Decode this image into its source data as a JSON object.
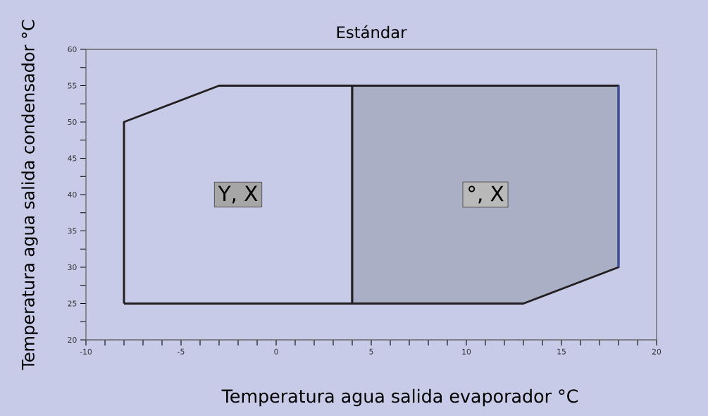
{
  "chart_data": {
    "type": "area",
    "title": "Estándar",
    "xlabel": "Temperatura agua salida evaporador °C",
    "ylabel": "Temperatura agua salida condensador °C",
    "xlim": [
      -10,
      20
    ],
    "ylim": [
      20,
      60
    ],
    "xticks": [
      -10,
      {
        "value": -9,
        "label": null
      },
      {
        "value": -8,
        "label": null
      },
      {
        "value": -7,
        "label": null
      },
      {
        "value": -6,
        "label": null
      },
      -5,
      {
        "value": -4,
        "label": null
      },
      {
        "value": -3,
        "label": null
      },
      {
        "value": -2,
        "label": null
      },
      {
        "value": -1,
        "label": null
      },
      0,
      {
        "value": 1,
        "label": null
      },
      {
        "value": 2,
        "label": null
      },
      {
        "value": 3,
        "label": null
      },
      {
        "value": 4,
        "label": null
      },
      5,
      {
        "value": 6,
        "label": null
      },
      {
        "value": 7,
        "label": null
      },
      {
        "value": 8,
        "label": null
      },
      {
        "value": 9,
        "label": null
      },
      10,
      {
        "value": 11,
        "label": null
      },
      {
        "value": 12,
        "label": null
      },
      {
        "value": 13,
        "label": null
      },
      {
        "value": 14,
        "label": null
      },
      15,
      {
        "value": 16,
        "label": null
      },
      {
        "value": 17,
        "label": null
      },
      {
        "value": 18,
        "label": null
      },
      {
        "value": 19,
        "label": null
      },
      20
    ],
    "yticks": [
      20,
      {
        "value": 22.5,
        "label": null
      },
      25,
      {
        "value": 27.5,
        "label": null
      },
      30,
      {
        "value": 32.5,
        "label": null
      },
      35,
      {
        "value": 37.5,
        "label": null
      },
      40,
      {
        "value": 42.5,
        "label": null
      },
      45,
      {
        "value": 47.5,
        "label": null
      },
      50,
      {
        "value": 52.5,
        "label": null
      },
      55,
      {
        "value": 57.5,
        "label": null
      },
      60
    ],
    "series": [
      {
        "color": "#c8cbe8",
        "x": [
          -8,
          -8,
          -3,
          4,
          4,
          -8
        ],
        "values": [
          25,
          50,
          55,
          55,
          25,
          25
        ]
      },
      {
        "color": "#a9afc4",
        "x": [
          4,
          4,
          18,
          18,
          13,
          4
        ],
        "values": [
          25,
          55,
          55,
          30,
          25,
          25
        ]
      },
      {
        "type": "line",
        "color": "#3b4fa8",
        "x": [
          18,
          18
        ],
        "values": [
          30,
          55
        ]
      }
    ],
    "annotations": [
      "Y, X",
      "°, X"
    ],
    "grid": false
  }
}
